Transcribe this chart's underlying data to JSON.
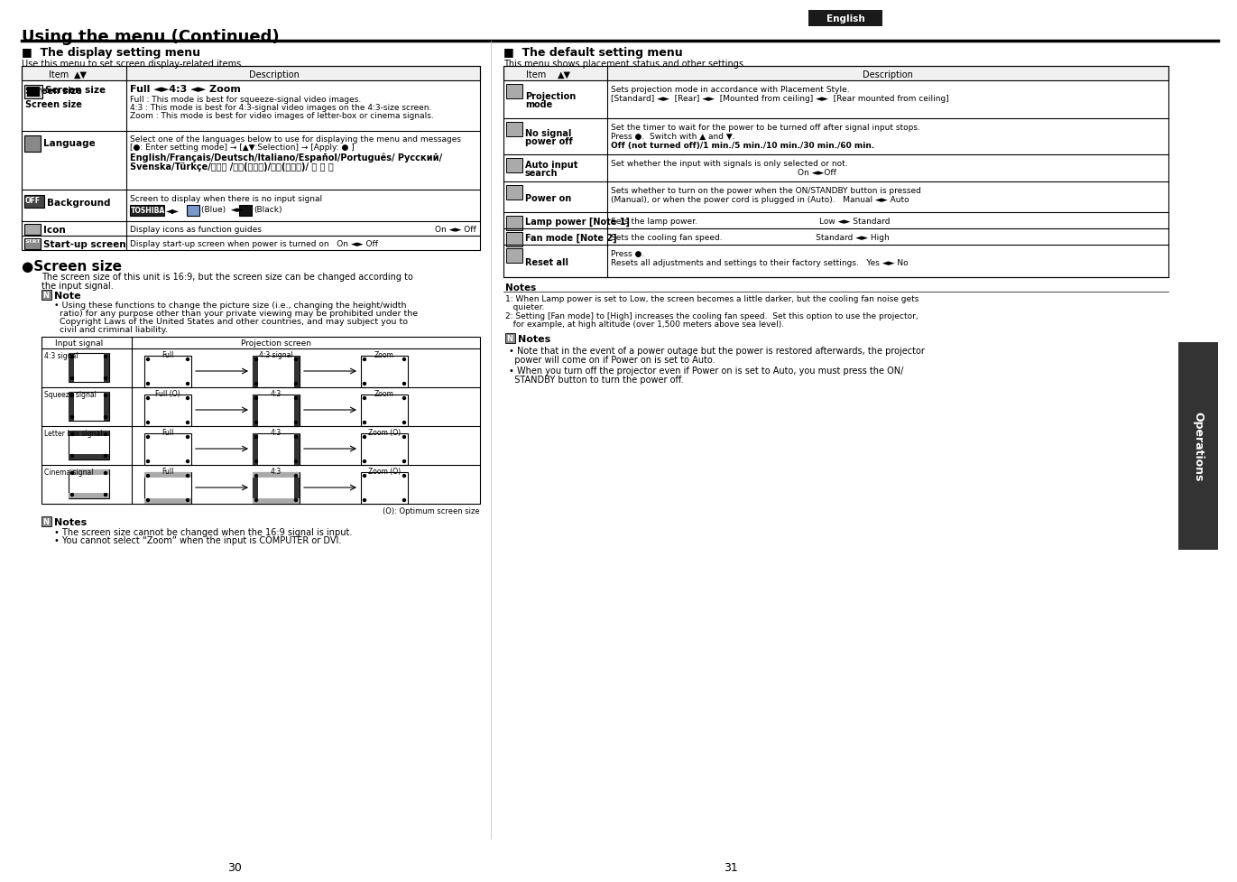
{
  "title": "Using the menu (Continued)",
  "english_tab": "English",
  "left_section_title": "The display setting menu",
  "left_section_subtitle": "Use this menu to set screen display-related items.",
  "right_section_title": "The default setting menu",
  "right_section_subtitle": "This menu shows placement status and other settings.",
  "page_left": "30",
  "page_right": "31",
  "bg_color": "#ffffff",
  "tab_bg": "#1a1a1a",
  "tab_text": "#ffffff"
}
